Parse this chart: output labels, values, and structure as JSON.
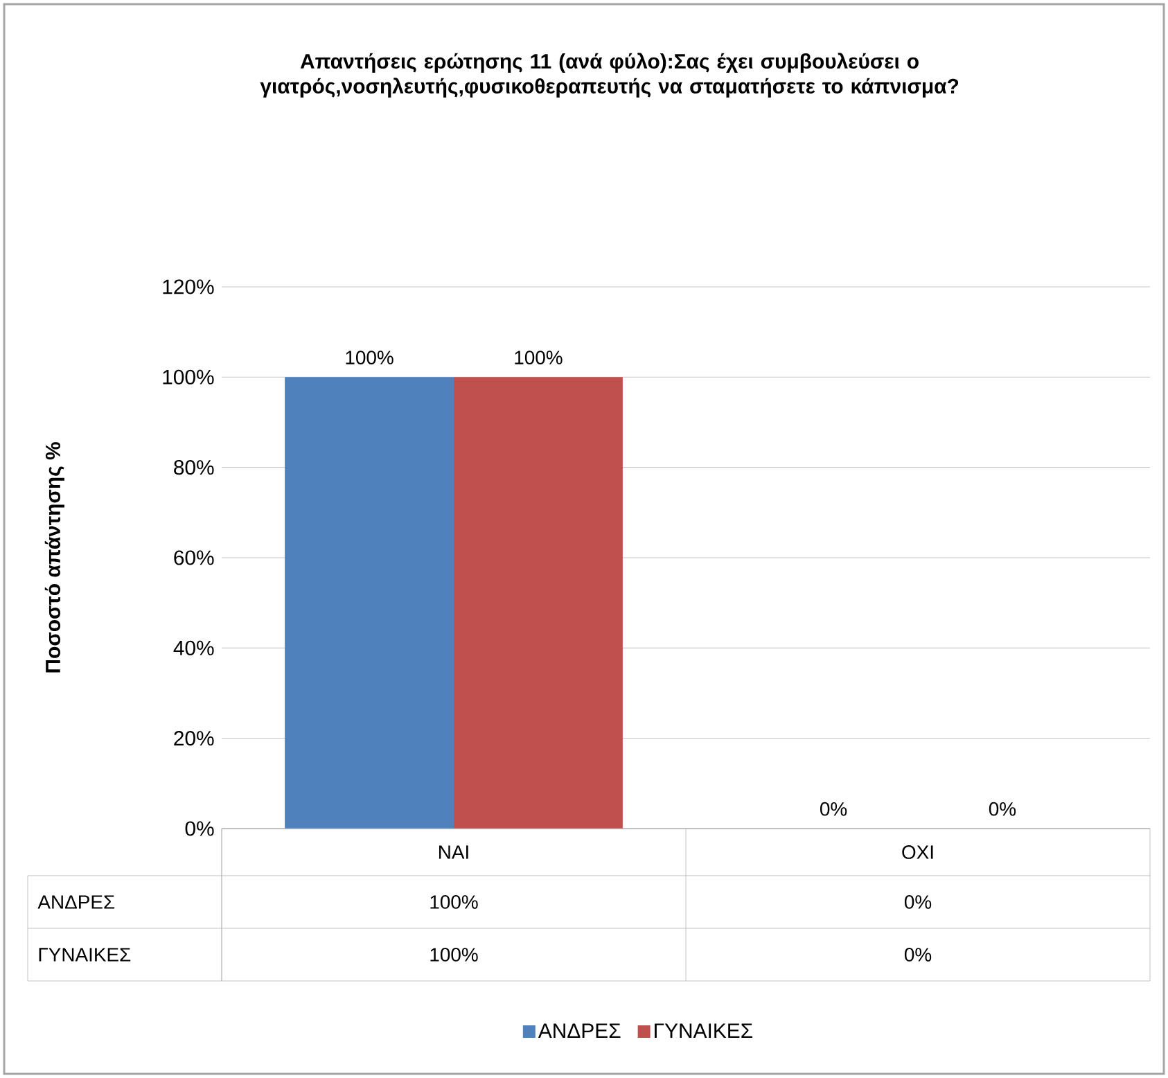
{
  "chart_data": {
    "type": "bar",
    "title": "Απαντήσεις ερώτησης 11 (ανά φύλο):Σας έχει συμβουλεύσει ο γιατρός,νοσηλευτής,φυσικοθεραπευτής να σταματήσετε το κάπνισμα?",
    "ylabel": "Ποσοστό απάντησης %",
    "categories": [
      "ΝΑΙ",
      "ΟΧΙ"
    ],
    "series": [
      {
        "name": "ΑΝΔΡΕΣ",
        "color": "#4f81bd",
        "values": [
          100,
          0
        ],
        "value_labels": [
          "100%",
          "0%"
        ]
      },
      {
        "name": "ΓΥΝΑΙΚΕΣ",
        "color": "#c0504d",
        "values": [
          100,
          0
        ],
        "value_labels": [
          "100%",
          "0%"
        ]
      }
    ],
    "ylim": [
      0,
      120
    ],
    "yticks": [
      {
        "value": 0,
        "label": "0%"
      },
      {
        "value": 20,
        "label": "20%"
      },
      {
        "value": 40,
        "label": "40%"
      },
      {
        "value": 60,
        "label": "60%"
      },
      {
        "value": 80,
        "label": "80%"
      },
      {
        "value": 100,
        "label": "100%"
      },
      {
        "value": 120,
        "label": "120%"
      }
    ],
    "grid": "y",
    "legend": "bottom"
  }
}
